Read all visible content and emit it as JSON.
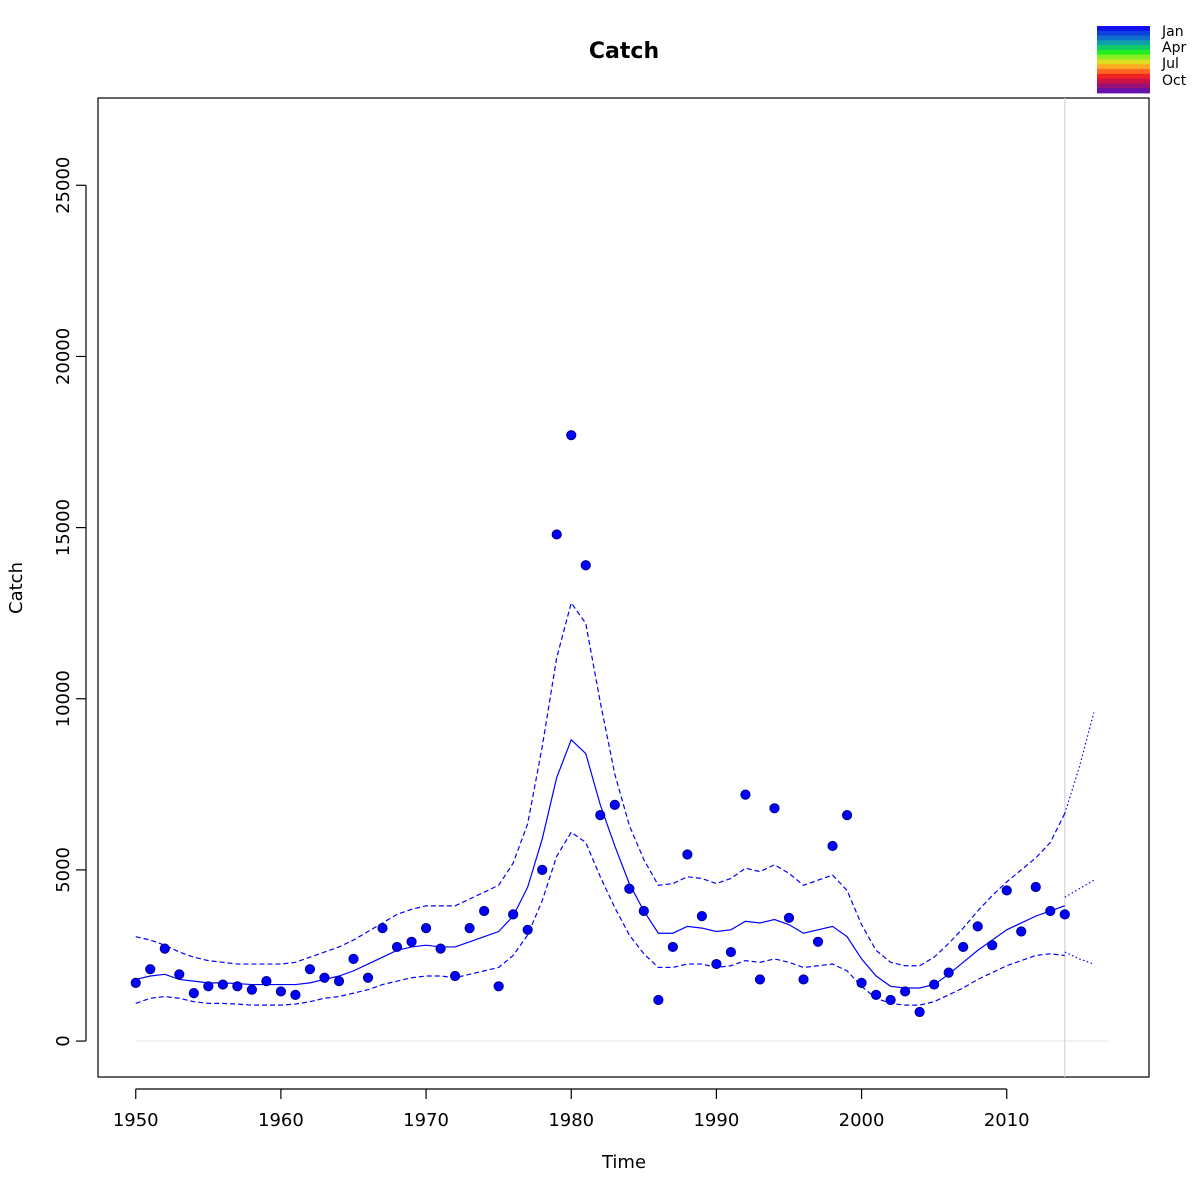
{
  "chart_data": {
    "type": "scatter",
    "title": "Catch",
    "xlabel": "Time",
    "ylabel": "Catch",
    "xlim": [
      1947.4,
      2019.8
    ],
    "ylim": [
      -1050,
      27550
    ],
    "x_ticks": [
      1950,
      1960,
      1970,
      1980,
      1990,
      2000,
      2010
    ],
    "y_ticks": [
      0,
      5000,
      10000,
      15000,
      20000,
      25000
    ],
    "grid": false,
    "forecast_start": 2014,
    "colors": {
      "points": "#0000ff",
      "fit": "#0000ff",
      "zero_line": "#e6e6e6",
      "vertical_line": "#d3d3d3"
    },
    "season_legend": {
      "position": "top-right",
      "labels": [
        "Jan",
        "Apr",
        "Jul",
        "Oct"
      ],
      "colors": [
        "#1010ee",
        "#1040dd",
        "#106ecc",
        "#10a0aa",
        "#10cc66",
        "#22ee22",
        "#88ee22",
        "#dddd22",
        "#ffaa22",
        "#ff6622",
        "#ee2222",
        "#cc1144",
        "#991177",
        "#6611aa"
      ]
    },
    "series": [
      {
        "role": "observed",
        "style": "points",
        "x": [
          1950,
          1951,
          1952,
          1953,
          1954,
          1955,
          1956,
          1957,
          1958,
          1959,
          1960,
          1961,
          1962,
          1963,
          1964,
          1965,
          1966,
          1967,
          1968,
          1969,
          1970,
          1971,
          1972,
          1973,
          1974,
          1975,
          1976,
          1977,
          1978,
          1979,
          1980,
          1981,
          1982,
          1983,
          1984,
          1985,
          1986,
          1987,
          1988,
          1989,
          1990,
          1991,
          1992,
          1993,
          1994,
          1995,
          1996,
          1997,
          1998,
          1999,
          2000,
          2001,
          2002,
          2003,
          2004,
          2005,
          2006,
          2007,
          2008,
          2009,
          2010,
          2011,
          2012,
          2013,
          2014
        ],
        "values": [
          1700,
          2100,
          2700,
          1950,
          1400,
          1600,
          1650,
          1600,
          1500,
          1750,
          1450,
          1350,
          2100,
          1850,
          1750,
          2400,
          1850,
          3300,
          2750,
          2900,
          3300,
          2700,
          1900,
          3300,
          3800,
          1600,
          3700,
          3250,
          5000,
          14800,
          17700,
          13900,
          6600,
          6900,
          4450,
          3800,
          1200,
          2750,
          5450,
          3650,
          2250,
          2600,
          7200,
          1800,
          6800,
          3600,
          1800,
          2900,
          5700,
          6600,
          1700,
          1350,
          1200,
          1450,
          850,
          1650,
          2000,
          2750,
          3350,
          2800,
          4400,
          3200,
          4500,
          3800,
          3700
        ]
      },
      {
        "role": "fitted",
        "style": "solid",
        "x": [
          1950,
          1951,
          1952,
          1953,
          1954,
          1955,
          1956,
          1957,
          1958,
          1959,
          1960,
          1961,
          1962,
          1963,
          1964,
          1965,
          1966,
          1967,
          1968,
          1969,
          1970,
          1971,
          1972,
          1973,
          1974,
          1975,
          1976,
          1977,
          1978,
          1979,
          1980,
          1981,
          1982,
          1983,
          1984,
          1985,
          1986,
          1987,
          1988,
          1989,
          1990,
          1991,
          1992,
          1993,
          1994,
          1995,
          1996,
          1997,
          1998,
          1999,
          2000,
          2001,
          2002,
          2003,
          2004,
          2005,
          2006,
          2007,
          2008,
          2009,
          2010,
          2011,
          2012,
          2013,
          2014
        ],
        "values": [
          1800,
          1900,
          1950,
          1800,
          1750,
          1700,
          1700,
          1680,
          1650,
          1650,
          1650,
          1650,
          1700,
          1800,
          1900,
          2050,
          2250,
          2450,
          2650,
          2750,
          2800,
          2750,
          2750,
          2900,
          3050,
          3200,
          3650,
          4500,
          5900,
          7700,
          8800,
          8400,
          6900,
          5700,
          4600,
          3800,
          3150,
          3150,
          3350,
          3300,
          3200,
          3250,
          3500,
          3450,
          3550,
          3400,
          3150,
          3250,
          3350,
          3050,
          2400,
          1900,
          1600,
          1550,
          1550,
          1650,
          1950,
          2300,
          2650,
          2950,
          3250,
          3450,
          3650,
          3800,
          3950
        ]
      },
      {
        "role": "upper",
        "style": "dashed",
        "x": [
          1950,
          1951,
          1952,
          1953,
          1954,
          1955,
          1956,
          1957,
          1958,
          1959,
          1960,
          1961,
          1962,
          1963,
          1964,
          1965,
          1966,
          1967,
          1968,
          1969,
          1970,
          1971,
          1972,
          1973,
          1974,
          1975,
          1976,
          1977,
          1978,
          1979,
          1980,
          1981,
          1982,
          1983,
          1984,
          1985,
          1986,
          1987,
          1988,
          1989,
          1990,
          1991,
          1992,
          1993,
          1994,
          1995,
          1996,
          1997,
          1998,
          1999,
          2000,
          2001,
          2002,
          2003,
          2004,
          2005,
          2006,
          2007,
          2008,
          2009,
          2010,
          2011,
          2012,
          2013,
          2014
        ],
        "values": [
          3050,
          2950,
          2800,
          2600,
          2450,
          2350,
          2300,
          2250,
          2250,
          2250,
          2250,
          2300,
          2450,
          2600,
          2750,
          2950,
          3200,
          3450,
          3700,
          3850,
          3950,
          3950,
          3950,
          4150,
          4350,
          4550,
          5200,
          6350,
          8600,
          11200,
          12800,
          12200,
          9900,
          7800,
          6300,
          5300,
          4550,
          4600,
          4800,
          4750,
          4600,
          4750,
          5050,
          4950,
          5150,
          4900,
          4550,
          4700,
          4850,
          4400,
          3400,
          2650,
          2300,
          2200,
          2200,
          2450,
          2850,
          3300,
          3800,
          4250,
          4650,
          5000,
          5350,
          5800,
          6650
        ]
      },
      {
        "role": "lower",
        "style": "dashed",
        "x": [
          1950,
          1951,
          1952,
          1953,
          1954,
          1955,
          1956,
          1957,
          1958,
          1959,
          1960,
          1961,
          1962,
          1963,
          1964,
          1965,
          1966,
          1967,
          1968,
          1969,
          1970,
          1971,
          1972,
          1973,
          1974,
          1975,
          1976,
          1977,
          1978,
          1979,
          1980,
          1981,
          1982,
          1983,
          1984,
          1985,
          1986,
          1987,
          1988,
          1989,
          1990,
          1991,
          1992,
          1993,
          1994,
          1995,
          1996,
          1997,
          1998,
          1999,
          2000,
          2001,
          2002,
          2003,
          2004,
          2005,
          2006,
          2007,
          2008,
          2009,
          2010,
          2011,
          2012,
          2013,
          2014
        ],
        "values": [
          1100,
          1250,
          1300,
          1250,
          1150,
          1100,
          1100,
          1080,
          1050,
          1050,
          1050,
          1080,
          1150,
          1250,
          1300,
          1400,
          1500,
          1650,
          1750,
          1850,
          1900,
          1900,
          1850,
          1950,
          2050,
          2150,
          2500,
          3100,
          4100,
          5400,
          6100,
          5800,
          4800,
          3900,
          3100,
          2550,
          2150,
          2150,
          2250,
          2250,
          2150,
          2200,
          2350,
          2300,
          2400,
          2300,
          2150,
          2200,
          2250,
          2050,
          1600,
          1250,
          1100,
          1050,
          1050,
          1150,
          1350,
          1550,
          1800,
          2000,
          2200,
          2350,
          2500,
          2550,
          2500
        ]
      },
      {
        "role": "forecast",
        "style": "dotted",
        "x": [
          2014,
          2015,
          2016
        ],
        "values": [
          4200,
          4450,
          4700
        ]
      },
      {
        "role": "forecast-upper",
        "style": "dotted",
        "x": [
          2014,
          2015,
          2016
        ],
        "values": [
          6650,
          8000,
          9600
        ]
      },
      {
        "role": "forecast-lower",
        "style": "dotted",
        "x": [
          2014,
          2015,
          2016
        ],
        "values": [
          2600,
          2400,
          2250
        ]
      }
    ]
  }
}
